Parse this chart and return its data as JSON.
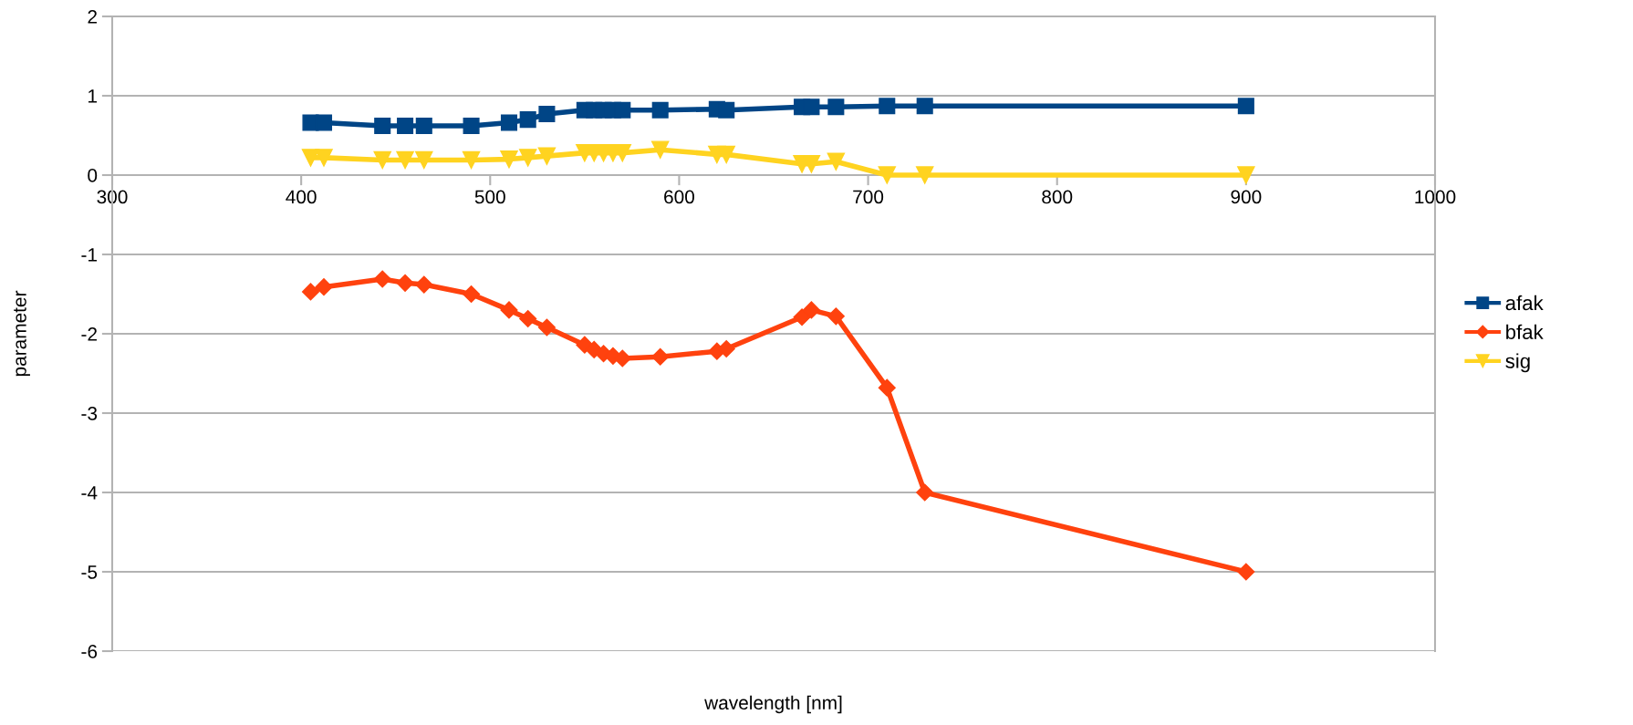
{
  "chart_data": {
    "type": "line",
    "xlabel": "wavelength [nm]",
    "ylabel": "parameter",
    "x": [
      405,
      412,
      443,
      455,
      465,
      490,
      510,
      520,
      530,
      550,
      555,
      560,
      565,
      570,
      590,
      620,
      625,
      665,
      670,
      683,
      710,
      730,
      900
    ],
    "series": [
      {
        "name": "afak",
        "color": "#004586",
        "marker": "square",
        "values": [
          0.66,
          0.66,
          0.62,
          0.62,
          0.62,
          0.62,
          0.66,
          0.7,
          0.77,
          0.82,
          0.82,
          0.82,
          0.82,
          0.82,
          0.82,
          0.83,
          0.82,
          0.86,
          0.86,
          0.86,
          0.87,
          0.87,
          0.87
        ]
      },
      {
        "name": "bfak",
        "color": "#ff420e",
        "marker": "diamond",
        "values": [
          -1.47,
          -1.41,
          -1.31,
          -1.36,
          -1.38,
          -1.5,
          -1.7,
          -1.81,
          -1.92,
          -2.14,
          -2.2,
          -2.25,
          -2.28,
          -2.31,
          -2.29,
          -2.22,
          -2.19,
          -1.79,
          -1.7,
          -1.78,
          -2.68,
          -4.0,
          -5.0
        ]
      },
      {
        "name": "sig",
        "color": "#ffd320",
        "marker": "triangle",
        "values": [
          0.22,
          0.22,
          0.19,
          0.19,
          0.19,
          0.19,
          0.2,
          0.22,
          0.24,
          0.28,
          0.28,
          0.28,
          0.28,
          0.28,
          0.32,
          0.26,
          0.26,
          0.14,
          0.14,
          0.17,
          0,
          0,
          0
        ]
      }
    ],
    "xlim": [
      300,
      1000
    ],
    "xticks": [
      300,
      400,
      500,
      600,
      700,
      800,
      900,
      1000
    ],
    "ylim": [
      -6,
      2
    ],
    "yticks": [
      -6,
      -5,
      -4,
      -3,
      -2,
      -1,
      0,
      1,
      2
    ],
    "grid": "y",
    "legend": "right",
    "line_style": "solid"
  }
}
